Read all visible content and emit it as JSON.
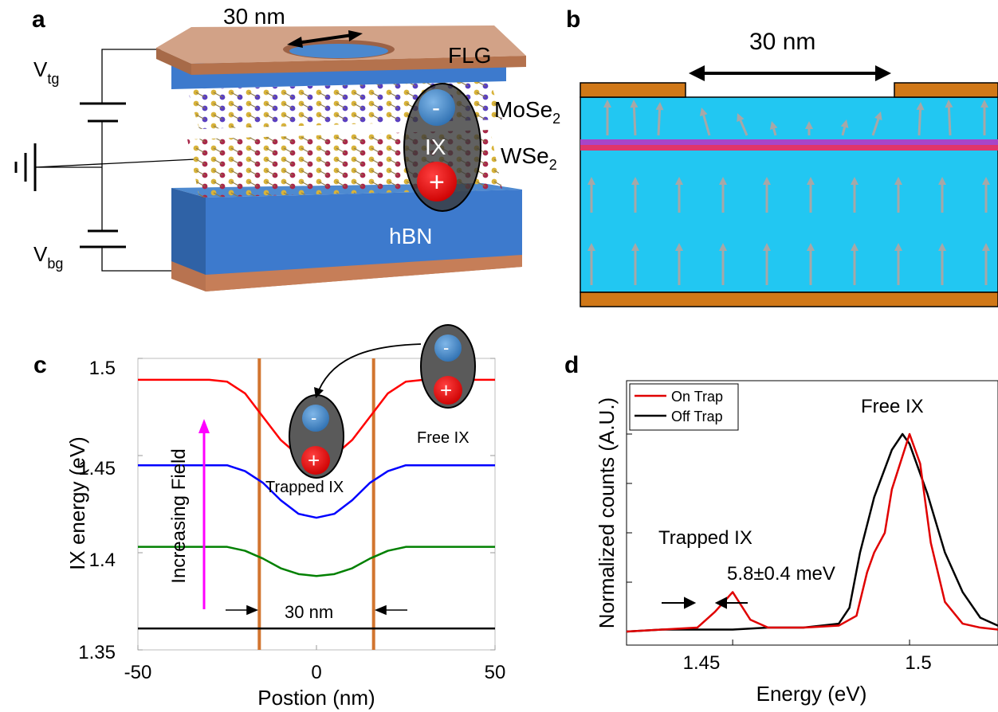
{
  "panel_a": {
    "letter": "a",
    "scale_label": "30 nm",
    "flg_label": "FLG",
    "mose2_base": "MoSe",
    "mose2_sub": "2",
    "wse2_base": "WSe",
    "wse2_sub": "2",
    "ix_label": "IX",
    "minus_sign": "-",
    "plus_sign": "+",
    "hbn_label": "hBN",
    "vtg_base": "V",
    "vtg_sub": "tg",
    "vbg_base": "V",
    "vbg_sub": "bg"
  },
  "panel_b": {
    "letter": "b",
    "scale_label": "30 nm",
    "colors": {
      "metal": "#d07818",
      "hbn": "#22c7f2",
      "tmd_top": "#a845c8",
      "tmd_bottom": "#e0356a",
      "arrow": "#a7a7a7"
    }
  },
  "panel_c": {
    "letter": "c",
    "ylabel": "IX energy (eV)",
    "xlabel": "Postion (nm)",
    "xticks": [
      "-50",
      "0",
      "50"
    ],
    "yticks": [
      "1.35",
      "1.4",
      "1.45",
      "1.5"
    ],
    "annot_field": "Increasing Field",
    "annot_trapped": "Trapped IX",
    "annot_free": "Free IX",
    "annot_width": "30 nm",
    "minus_sign": "-",
    "plus_sign": "+"
  },
  "panel_d": {
    "letter": "d",
    "ylabel": "Normalized counts (A.U.)",
    "xlabel": "Energy (eV)",
    "xticks": [
      "1.45",
      "1.5"
    ],
    "legend": [
      "On Trap",
      "Off Trap"
    ],
    "annot_free": "Free IX",
    "annot_trapped": "Trapped IX",
    "annot_width": "5.8±0.4 meV"
  },
  "chart_data": [
    {
      "type": "line",
      "panel": "c",
      "xlabel": "Postion (nm)",
      "ylabel": "IX energy (eV)",
      "xlim": [
        -50,
        50
      ],
      "ylim": [
        1.35,
        1.5
      ],
      "xticks": [
        -50,
        0,
        50
      ],
      "yticks": [
        1.35,
        1.4,
        1.45,
        1.5
      ],
      "x": [
        -50,
        -40,
        -30,
        -25,
        -20,
        -15,
        -10,
        -5,
        0,
        5,
        10,
        15,
        20,
        25,
        30,
        40,
        50
      ],
      "series": [
        {
          "color": "#ff0000",
          "values": [
            1.489,
            1.489,
            1.489,
            1.488,
            1.482,
            1.47,
            1.458,
            1.45,
            1.448,
            1.45,
            1.458,
            1.47,
            1.482,
            1.488,
            1.489,
            1.489,
            1.489
          ]
        },
        {
          "color": "#0000ff",
          "values": [
            1.445,
            1.445,
            1.445,
            1.445,
            1.442,
            1.436,
            1.427,
            1.42,
            1.418,
            1.42,
            1.427,
            1.436,
            1.442,
            1.445,
            1.445,
            1.445,
            1.445
          ]
        },
        {
          "color": "#008000",
          "values": [
            1.403,
            1.403,
            1.403,
            1.403,
            1.401,
            1.397,
            1.392,
            1.389,
            1.388,
            1.389,
            1.392,
            1.397,
            1.401,
            1.403,
            1.403,
            1.403,
            1.403
          ]
        },
        {
          "color": "#000000",
          "values": [
            1.361,
            1.361,
            1.361,
            1.361,
            1.361,
            1.361,
            1.361,
            1.361,
            1.361,
            1.361,
            1.361,
            1.361,
            1.361,
            1.361,
            1.361,
            1.361,
            1.361
          ]
        }
      ],
      "vlines": [
        -16,
        16
      ]
    },
    {
      "type": "line",
      "panel": "d",
      "xlabel": "Energy (eV)",
      "ylabel": "Normalized counts (A.U.)",
      "xlim": [
        1.42,
        1.525
      ],
      "xticks": [
        1.45,
        1.5
      ],
      "legend_position": "top-left",
      "series": [
        {
          "name": "On Trap",
          "color": "#e00000",
          "x": [
            1.42,
            1.43,
            1.44,
            1.445,
            1.45,
            1.455,
            1.46,
            1.47,
            1.48,
            1.485,
            1.488,
            1.49,
            1.493,
            1.495,
            1.5,
            1.503,
            1.506,
            1.51,
            1.515,
            1.52,
            1.525
          ],
          "values": [
            0.0,
            0.01,
            0.02,
            0.1,
            0.2,
            0.06,
            0.02,
            0.02,
            0.03,
            0.08,
            0.3,
            0.4,
            0.5,
            0.72,
            1.0,
            0.85,
            0.45,
            0.15,
            0.04,
            0.02,
            0.01
          ]
        },
        {
          "name": "Off Trap",
          "color": "#000000",
          "x": [
            1.42,
            1.43,
            1.44,
            1.45,
            1.46,
            1.47,
            1.48,
            1.483,
            1.486,
            1.49,
            1.495,
            1.498,
            1.5,
            1.505,
            1.51,
            1.515,
            1.52,
            1.525
          ],
          "values": [
            0.0,
            0.01,
            0.01,
            0.01,
            0.02,
            0.02,
            0.04,
            0.12,
            0.4,
            0.68,
            0.92,
            1.0,
            0.95,
            0.7,
            0.4,
            0.2,
            0.07,
            0.03
          ]
        }
      ]
    }
  ]
}
